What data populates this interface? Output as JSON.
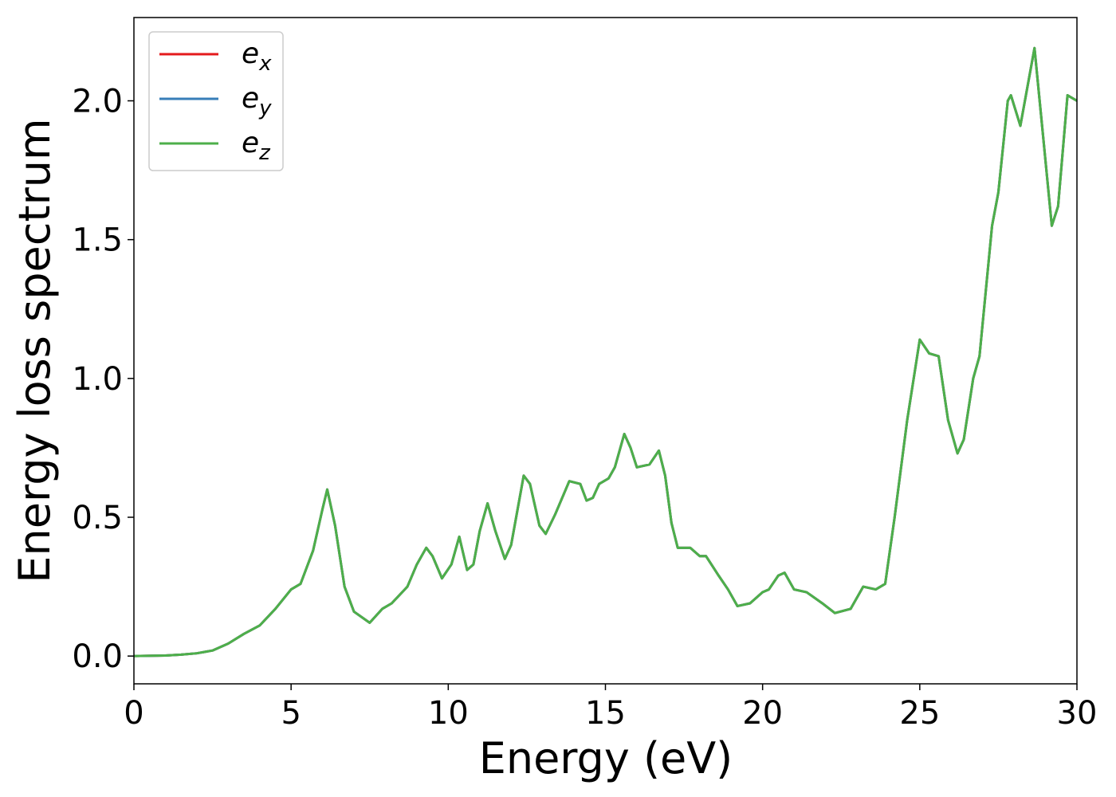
{
  "chart_data": {
    "type": "line",
    "xlabel": "Energy (eV)",
    "ylabel": "Energy loss spectrum",
    "x": [
      0,
      1,
      1.5,
      2,
      2.5,
      3,
      3.5,
      4,
      4.5,
      5,
      5.3,
      5.7,
      6.0,
      6.15,
      6.4,
      6.7,
      7.0,
      7.5,
      7.9,
      8.2,
      8.7,
      9.0,
      9.3,
      9.5,
      9.8,
      10.1,
      10.35,
      10.6,
      10.8,
      11.0,
      11.25,
      11.5,
      11.8,
      12.0,
      12.4,
      12.6,
      12.9,
      13.1,
      13.4,
      13.85,
      14.2,
      14.4,
      14.6,
      14.8,
      15.1,
      15.3,
      15.6,
      15.8,
      16.0,
      16.4,
      16.7,
      16.9,
      17.1,
      17.3,
      17.7,
      18.0,
      18.2,
      18.6,
      18.9,
      19.2,
      19.6,
      20.0,
      20.2,
      20.5,
      20.7,
      21.0,
      21.4,
      21.9,
      22.3,
      22.8,
      23.2,
      23.6,
      23.9,
      24.2,
      24.6,
      25.0,
      25.3,
      25.6,
      25.9,
      26.2,
      26.4,
      26.7,
      26.9,
      27.3,
      27.5,
      27.8,
      27.9,
      28.2,
      28.65,
      28.9,
      29.2,
      29.4,
      29.7,
      30.0
    ],
    "series": [
      {
        "name": "ex",
        "color": "#e41a1c",
        "values": [
          0,
          0.002,
          0.005,
          0.01,
          0.02,
          0.045,
          0.08,
          0.11,
          0.17,
          0.24,
          0.26,
          0.38,
          0.53,
          0.6,
          0.47,
          0.25,
          0.16,
          0.12,
          0.17,
          0.19,
          0.25,
          0.33,
          0.39,
          0.36,
          0.28,
          0.33,
          0.43,
          0.31,
          0.33,
          0.45,
          0.55,
          0.45,
          0.35,
          0.4,
          0.65,
          0.62,
          0.47,
          0.44,
          0.51,
          0.63,
          0.62,
          0.56,
          0.57,
          0.62,
          0.64,
          0.68,
          0.8,
          0.75,
          0.68,
          0.69,
          0.74,
          0.65,
          0.48,
          0.39,
          0.39,
          0.36,
          0.36,
          0.29,
          0.24,
          0.18,
          0.19,
          0.23,
          0.24,
          0.29,
          0.3,
          0.24,
          0.23,
          0.19,
          0.155,
          0.17,
          0.25,
          0.24,
          0.26,
          0.5,
          0.85,
          1.14,
          1.09,
          1.08,
          0.85,
          0.73,
          0.78,
          1.0,
          1.08,
          1.55,
          1.67,
          2.0,
          2.02,
          1.91,
          2.19,
          1.9,
          1.55,
          1.62,
          2.02,
          2.0
        ]
      },
      {
        "name": "ey",
        "color": "#377eb8",
        "values": [
          0,
          0.002,
          0.005,
          0.01,
          0.02,
          0.045,
          0.08,
          0.11,
          0.17,
          0.24,
          0.26,
          0.38,
          0.53,
          0.6,
          0.47,
          0.25,
          0.16,
          0.12,
          0.17,
          0.19,
          0.25,
          0.33,
          0.39,
          0.36,
          0.28,
          0.33,
          0.43,
          0.31,
          0.33,
          0.45,
          0.55,
          0.45,
          0.35,
          0.4,
          0.65,
          0.62,
          0.47,
          0.44,
          0.51,
          0.63,
          0.62,
          0.56,
          0.57,
          0.62,
          0.64,
          0.68,
          0.8,
          0.75,
          0.68,
          0.69,
          0.74,
          0.65,
          0.48,
          0.39,
          0.39,
          0.36,
          0.36,
          0.29,
          0.24,
          0.18,
          0.19,
          0.23,
          0.24,
          0.29,
          0.3,
          0.24,
          0.23,
          0.19,
          0.155,
          0.17,
          0.25,
          0.24,
          0.26,
          0.5,
          0.85,
          1.14,
          1.09,
          1.08,
          0.85,
          0.73,
          0.78,
          1.0,
          1.08,
          1.55,
          1.67,
          2.0,
          2.02,
          1.91,
          2.19,
          1.9,
          1.55,
          1.62,
          2.02,
          2.0
        ]
      },
      {
        "name": "ez",
        "color": "#4daf4a",
        "values": [
          0,
          0.002,
          0.005,
          0.01,
          0.02,
          0.045,
          0.08,
          0.11,
          0.17,
          0.24,
          0.26,
          0.38,
          0.53,
          0.6,
          0.47,
          0.25,
          0.16,
          0.12,
          0.17,
          0.19,
          0.25,
          0.33,
          0.39,
          0.36,
          0.28,
          0.33,
          0.43,
          0.31,
          0.33,
          0.45,
          0.55,
          0.45,
          0.35,
          0.4,
          0.65,
          0.62,
          0.47,
          0.44,
          0.51,
          0.63,
          0.62,
          0.56,
          0.57,
          0.62,
          0.64,
          0.68,
          0.8,
          0.75,
          0.68,
          0.69,
          0.74,
          0.65,
          0.48,
          0.39,
          0.39,
          0.36,
          0.36,
          0.29,
          0.24,
          0.18,
          0.19,
          0.23,
          0.24,
          0.29,
          0.3,
          0.24,
          0.23,
          0.19,
          0.155,
          0.17,
          0.25,
          0.24,
          0.26,
          0.5,
          0.85,
          1.14,
          1.09,
          1.08,
          0.85,
          0.73,
          0.78,
          1.0,
          1.08,
          1.55,
          1.67,
          2.0,
          2.02,
          1.91,
          2.19,
          1.9,
          1.55,
          1.62,
          2.02,
          2.0
        ]
      }
    ],
    "xlim": [
      0,
      30
    ],
    "xticks": [
      0,
      5,
      10,
      15,
      20,
      25,
      30
    ],
    "ylim": [
      -0.1,
      2.3
    ],
    "yticks": [
      {
        "value": 0,
        "label": "0.0"
      },
      {
        "value": 0.5,
        "label": "0.5"
      },
      {
        "value": 1,
        "label": "1.0"
      },
      {
        "value": 1.5,
        "label": "1.5"
      },
      {
        "value": 2,
        "label": "2.0"
      }
    ],
    "grid": false,
    "legend": "upper left"
  }
}
